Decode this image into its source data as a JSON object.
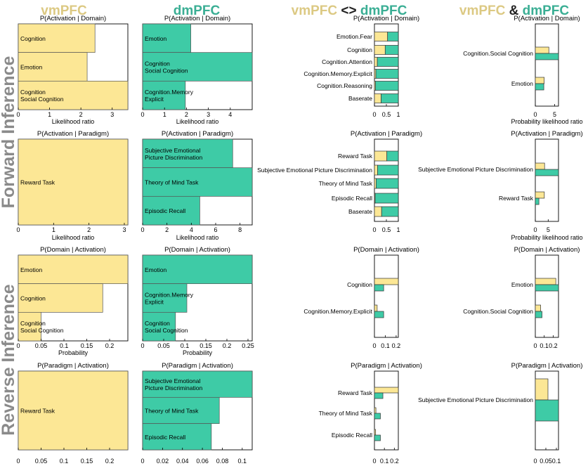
{
  "colors": {
    "vm": "#fce795",
    "dm": "#3ecba6",
    "frame": "#000000",
    "rowLabel": "#8a8a8a"
  },
  "column_headers": [
    {
      "parts": [
        {
          "text": "vmPFC",
          "color": "#dcc983"
        }
      ]
    },
    {
      "parts": [
        {
          "text": "dmPFC",
          "color": "#3aae94"
        }
      ]
    },
    {
      "parts": [
        {
          "text": "vmPFC",
          "color": "#dcc983"
        },
        {
          "text": " <> ",
          "color": "#222222"
        },
        {
          "text": "dmPFC",
          "color": "#3aae94"
        }
      ]
    },
    {
      "parts": [
        {
          "text": "vmPFC",
          "color": "#dcc983"
        },
        {
          "text": " & ",
          "color": "#222222"
        },
        {
          "text": "dmPFC",
          "color": "#3aae94"
        }
      ]
    }
  ],
  "row_labels": [
    "Forward Inference",
    "Reverse Inference"
  ],
  "chart_data": [
    {
      "id": "vm-fd",
      "type": "bar",
      "orientation": "horizontal",
      "title": "P(Activation | Domain)",
      "xlabel": "Likelihood ratio",
      "xlim": [
        0,
        3.5
      ],
      "xticks": [
        0,
        1,
        2,
        3
      ],
      "tick_labels": [
        "0",
        "1",
        "2",
        "3"
      ],
      "series": [
        {
          "name": "vmPFC",
          "color": "vm"
        }
      ],
      "categories": [
        [
          "Cognition"
        ],
        [
          "Emotion"
        ],
        [
          "Cognition",
          "Social Cognition"
        ]
      ],
      "values": [
        2.45,
        2.2,
        3.5
      ]
    },
    {
      "id": "dm-fd",
      "type": "bar",
      "orientation": "horizontal",
      "title": "P(Activation | Domain)",
      "xlabel": "Likelihood ratio",
      "xlim": [
        0,
        5
      ],
      "xticks": [
        0,
        1,
        2,
        3,
        4
      ],
      "tick_labels": [
        "0",
        "1",
        "2",
        "3",
        "4"
      ],
      "series": [
        {
          "name": "dmPFC",
          "color": "dm"
        }
      ],
      "categories": [
        [
          "Emotion"
        ],
        [
          "Cognition",
          "Social Cognition"
        ],
        [
          "Cognition.Memory",
          "Explicit"
        ]
      ],
      "values": [
        2.2,
        5,
        1.95
      ]
    },
    {
      "id": "diff-fd",
      "type": "bar",
      "orientation": "horizontal",
      "stacked": true,
      "title": "P(Activation | Domain)",
      "xlabel": "",
      "xlim": [
        0,
        1
      ],
      "xticks": [
        0,
        0.5,
        1
      ],
      "tick_labels": [
        "0",
        "0.5",
        "1"
      ],
      "series": [
        {
          "name": "vmPFC",
          "color": "vm"
        },
        {
          "name": "dmPFC",
          "color": "dm"
        }
      ],
      "categories": [
        "Emotion.Fear",
        "Cognition",
        "Cognition.Attention",
        "Cognition.Memory.Explicit",
        "Cognition.Reasoning",
        "Baserate"
      ],
      "values": [
        [
          0.55,
          0.45
        ],
        [
          0.45,
          0.55
        ],
        [
          0.12,
          0.88
        ],
        [
          0.06,
          0.94
        ],
        [
          0.04,
          0.96
        ],
        [
          0.28,
          0.72
        ]
      ]
    },
    {
      "id": "conj-fd",
      "type": "bar",
      "orientation": "horizontal",
      "grouped": true,
      "title": "P(Activation | Domain)",
      "xlabel": "Probability likelihood ratio",
      "xlim": [
        0,
        6
      ],
      "xticks": [
        0,
        5
      ],
      "tick_labels": [
        "0",
        "5"
      ],
      "series": [
        {
          "name": "vmPFC",
          "color": "vm"
        },
        {
          "name": "dmPFC",
          "color": "dm"
        }
      ],
      "categories": [
        "Cognition.Social Cognition",
        "Emotion"
      ],
      "values": [
        [
          3.5,
          6
        ],
        [
          2.3,
          2.2
        ]
      ]
    },
    {
      "id": "vm-fp",
      "type": "bar",
      "orientation": "horizontal",
      "title": "P(Activation | Paradigm)",
      "xlabel": "Likelihood ratio",
      "xlim": [
        0,
        3.1
      ],
      "xticks": [
        0,
        1,
        2,
        3
      ],
      "tick_labels": [
        "0",
        "1",
        "2",
        "3"
      ],
      "series": [
        {
          "name": "vmPFC",
          "color": "vm"
        }
      ],
      "categories": [
        [
          "Reward Task"
        ]
      ],
      "values": [
        3.1
      ]
    },
    {
      "id": "dm-fp",
      "type": "bar",
      "orientation": "horizontal",
      "title": "P(Activation | Paradigm)",
      "xlabel": "Likelihood ratio",
      "xlim": [
        0,
        9
      ],
      "xticks": [
        0,
        2,
        4,
        6,
        8
      ],
      "tick_labels": [
        "0",
        "2",
        "4",
        "6",
        "8"
      ],
      "series": [
        {
          "name": "dmPFC",
          "color": "dm"
        }
      ],
      "categories": [
        [
          "Subjective Emotional",
          "Picture Discrimination"
        ],
        [
          "Theory of Mind Task"
        ],
        [
          "Episodic Recall"
        ]
      ],
      "values": [
        7.4,
        9,
        4.7
      ]
    },
    {
      "id": "diff-fp",
      "type": "bar",
      "orientation": "horizontal",
      "stacked": true,
      "title": "P(Activation | Paradigm)",
      "xlabel": "",
      "xlim": [
        0,
        1
      ],
      "xticks": [
        0,
        0.5,
        1
      ],
      "tick_labels": [
        "0",
        "0.5",
        "1"
      ],
      "series": [
        {
          "name": "vmPFC",
          "color": "vm"
        },
        {
          "name": "dmPFC",
          "color": "dm"
        }
      ],
      "categories": [
        "Reward Task",
        "Subjective Emotional Picture Discrimination",
        "Theory of Mind Task",
        "Episodic Recall",
        "Baserate"
      ],
      "values": [
        [
          0.52,
          0.48
        ],
        [
          0.13,
          0.87
        ],
        [
          0.07,
          0.93
        ],
        [
          0.03,
          0.97
        ],
        [
          0.3,
          0.7
        ]
      ]
    },
    {
      "id": "conj-fp",
      "type": "bar",
      "orientation": "horizontal",
      "grouped": true,
      "title": "P(Activation | Paradigm)",
      "xlabel": "Probability likelihood ratio",
      "xlim": [
        0,
        9
      ],
      "xticks": [
        0,
        5
      ],
      "tick_labels": [
        "0",
        "5"
      ],
      "series": [
        {
          "name": "vmPFC",
          "color": "vm"
        },
        {
          "name": "dmPFC",
          "color": "dm"
        }
      ],
      "categories": [
        "Subjective Emotional Picture Discrimination",
        "Reward Task"
      ],
      "values": [
        [
          3.6,
          9
        ],
        [
          3.5,
          1.4
        ]
      ]
    },
    {
      "id": "vm-rd",
      "type": "bar",
      "orientation": "horizontal",
      "title": "P(Domain | Activation)",
      "xlabel": "Probability",
      "xlim": [
        0,
        0.24
      ],
      "xticks": [
        0,
        0.05,
        0.1,
        0.15,
        0.2
      ],
      "tick_labels": [
        "0",
        "0.05",
        "0.1",
        "0.15",
        "0.2"
      ],
      "series": [
        {
          "name": "vmPFC",
          "color": "vm"
        }
      ],
      "categories": [
        [
          "Emotion"
        ],
        [
          "Cognition"
        ],
        [
          "Cognition",
          "Social Cognition"
        ]
      ],
      "values": [
        0.24,
        0.185,
        0.05
      ]
    },
    {
      "id": "dm-rd",
      "type": "bar",
      "orientation": "horizontal",
      "title": "P(Domain | Activation)",
      "xlabel": "Probability",
      "xlim": [
        0,
        0.26
      ],
      "xticks": [
        0,
        0.05,
        0.1,
        0.15,
        0.2,
        0.25
      ],
      "tick_labels": [
        "0",
        "0.05",
        "0.1",
        "0.15",
        "0.2",
        "0.25"
      ],
      "series": [
        {
          "name": "dmPFC",
          "color": "dm"
        }
      ],
      "categories": [
        [
          "Emotion"
        ],
        [
          "Cognition.Memory",
          "Explicit"
        ],
        [
          "Cognition",
          "Social Cognition"
        ]
      ],
      "values": [
        0.26,
        0.105,
        0.078
      ]
    },
    {
      "id": "diff-rd",
      "type": "bar",
      "orientation": "horizontal",
      "grouped": true,
      "title": "P(Domain | Activation)",
      "xlabel": "",
      "xlim": [
        0,
        0.22
      ],
      "xticks": [
        0,
        0.1,
        0.2
      ],
      "tick_labels": [
        "0",
        "0.1",
        "0.2"
      ],
      "series": [
        {
          "name": "vmPFC",
          "color": "vm"
        },
        {
          "name": "dmPFC",
          "color": "dm"
        }
      ],
      "categories": [
        "Cognition",
        "Cognition.Memory.Explicit"
      ],
      "values": [
        [
          0.22,
          0.085
        ],
        [
          0.025,
          0.085
        ]
      ]
    },
    {
      "id": "conj-rd",
      "type": "bar",
      "orientation": "horizontal",
      "grouped": true,
      "title": "P(Domain | Activation)",
      "xlabel": "",
      "xlim": [
        0,
        0.26
      ],
      "xticks": [
        0,
        0.1,
        0.2
      ],
      "tick_labels": [
        "0",
        "0.1",
        "0.2"
      ],
      "series": [
        {
          "name": "vmPFC",
          "color": "vm"
        },
        {
          "name": "dmPFC",
          "color": "dm"
        }
      ],
      "categories": [
        "Emotion",
        "Cognition.Social Cognition"
      ],
      "values": [
        [
          0.23,
          0.26
        ],
        [
          0.06,
          0.075
        ]
      ]
    },
    {
      "id": "vm-rp",
      "type": "bar",
      "orientation": "horizontal",
      "title": "P(Paradigm | Activation)",
      "xlabel": "",
      "xlim": [
        0,
        0.24
      ],
      "xticks": [
        0,
        0.05,
        0.1,
        0.15,
        0.2
      ],
      "tick_labels": [
        "0",
        "0.05",
        "0.1",
        "0.15",
        "0.2"
      ],
      "series": [
        {
          "name": "vmPFC",
          "color": "vm"
        }
      ],
      "categories": [
        [
          "Reward Task"
        ]
      ],
      "values": [
        0.24
      ]
    },
    {
      "id": "dm-rp",
      "type": "bar",
      "orientation": "horizontal",
      "title": "P(Paradigm | Activation)",
      "xlabel": "",
      "xlim": [
        0,
        0.11
      ],
      "xticks": [
        0,
        0.02,
        0.04,
        0.06,
        0.08,
        0.1
      ],
      "tick_labels": [
        "0",
        "0.02",
        "0.04",
        "0.06",
        "0.08",
        "0.1"
      ],
      "series": [
        {
          "name": "dmPFC",
          "color": "dm"
        }
      ],
      "categories": [
        [
          "Subjective Emotional",
          "Picture Discrimination"
        ],
        [
          "Theory of Mind Task"
        ],
        [
          "Episodic Recall"
        ]
      ],
      "values": [
        0.11,
        0.077,
        0.069
      ]
    },
    {
      "id": "diff-rp",
      "type": "bar",
      "orientation": "horizontal",
      "grouped": true,
      "title": "P(Paradigm | Activation)",
      "xlabel": "",
      "xlim": [
        0,
        0.24
      ],
      "xticks": [
        0,
        0.1,
        0.2
      ],
      "tick_labels": [
        "0",
        "0.1",
        "0.2"
      ],
      "series": [
        {
          "name": "vmPFC",
          "color": "vm"
        },
        {
          "name": "dmPFC",
          "color": "dm"
        }
      ],
      "categories": [
        "Reward Task",
        "Theory of Mind Task",
        "Episodic Recall"
      ],
      "values": [
        [
          0.24,
          0.085
        ],
        [
          0.015,
          0.06
        ],
        [
          0.012,
          0.06
        ]
      ]
    },
    {
      "id": "conj-rp",
      "type": "bar",
      "orientation": "horizontal",
      "grouped": true,
      "title": "P(Paradigm | Activation)",
      "xlabel": "",
      "xlim": [
        0,
        0.11
      ],
      "xticks": [
        0,
        0.05,
        0.1
      ],
      "tick_labels": [
        "0",
        "0.05",
        "0.1"
      ],
      "series": [
        {
          "name": "vmPFC",
          "color": "vm"
        },
        {
          "name": "dmPFC",
          "color": "dm"
        }
      ],
      "categories": [
        "Subjective Emotional Picture Discrimination"
      ],
      "values": [
        [
          0.06,
          0.11
        ]
      ]
    }
  ]
}
